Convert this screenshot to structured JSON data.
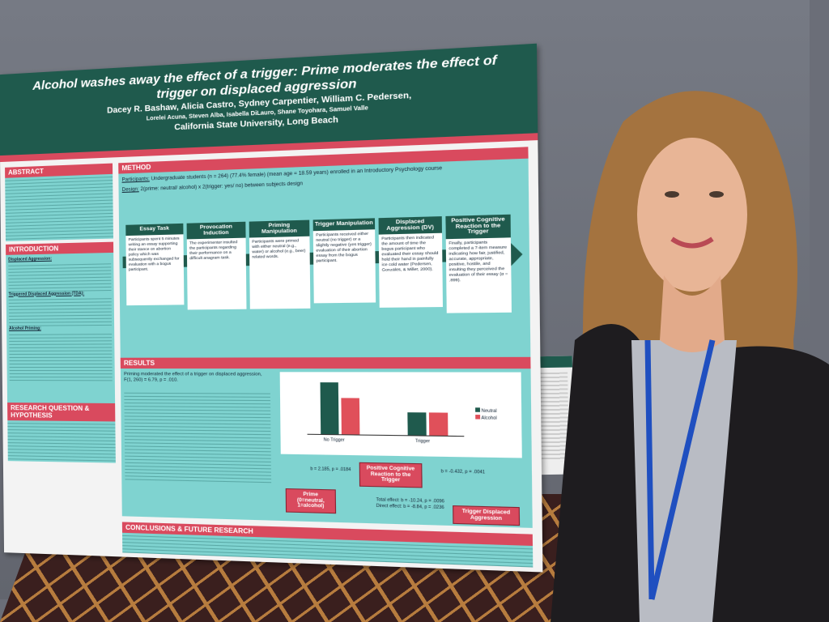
{
  "poster": {
    "title": "Alcohol washes away the effect of a trigger: Prime moderates the effect of trigger on displaced aggression",
    "authors": "Dacey R. Bashaw, Alicia Castro, Sydney Carpentier, William C. Pedersen,",
    "coauthors": "Lorelei Acuna, Steven Alba, Isabella DiLauro, Shane Toyohara, Samuel Valle",
    "affiliation": "California State University, Long Beach",
    "sections": {
      "abstract": "ABSTRACT",
      "introduction": "INTRODUCTION",
      "question": "RESEARCH QUESTION & HYPOTHESIS",
      "method": "METHOD",
      "results": "RESULTS",
      "conclusions": "CONCLUSIONS & FUTURE RESEARCH"
    },
    "intro_terms": [
      "Displaced Aggression:",
      "Triggered Displaced Aggression (TDA):",
      "Alcohol Priming:"
    ],
    "method": {
      "participants_label": "Participants:",
      "participants": "Undergraduate students (n = 264) (77.4% female) (mean age = 18.59 years) enrolled in an Introductory Psychology course",
      "design_label": "Design:",
      "design": "2(prime: neutral/ alcohol) x 2(trigger: yes/ no) between subjects design",
      "steps": [
        {
          "title": "Essay Task",
          "text": "Participants spent 5 minutes writing an essay supporting their stance on abortion policy which was subsequently exchanged for evaluation with a bogus participant."
        },
        {
          "title": "Provocation Induction",
          "text": "The experimenter insulted the participants regarding their performance on a difficult anagram task."
        },
        {
          "title": "Priming Manipulation",
          "text": "Participants were primed with either neutral (e.g., water) or alcohol (e.g., beer) related words."
        },
        {
          "title": "Trigger Manipulation",
          "text": "Participants received either neutral (no trigger) or a slightly negative (yes trigger) evaluation of their abortion essay from the bogus participant."
        },
        {
          "title": "Displaced Aggression (DV)",
          "text": "Participants then indicated the amount of time the bogus participant who evaluated their essay should hold their hand in painfully ice cold water (Pedersen, Gonzales, & Miller, 2000)."
        },
        {
          "title": "Positive Cognitive Reaction to the Trigger",
          "text": "Finally, participants completed a 7-item measure indicating how fair, justified, accurate, appropriate, positive, hostile, and insulting they perceived the evaluation of their essay (α = .899)."
        }
      ]
    },
    "results": {
      "main": "Priming moderated the effect of a trigger on displaced aggression, F(1, 260) = 6.79, p = .010.",
      "legend": [
        "Neutral",
        "Alcohol"
      ],
      "groups": [
        "No Trigger",
        "Trigger"
      ]
    },
    "mediation": {
      "mediator": "Positive Cognitive Reaction to the Trigger",
      "predictor": "Prime (0=neutral, 1=alcohol)",
      "outcome": "Trigger Displaced Aggression",
      "path_a": "b = 2.185, p = .0184",
      "path_b": "b = -0.432, p = .0041",
      "total": "Total effect: b = -10.24, p = .0096",
      "direct": "Direct effect: b = -8.84, p = .0236"
    }
  }
}
